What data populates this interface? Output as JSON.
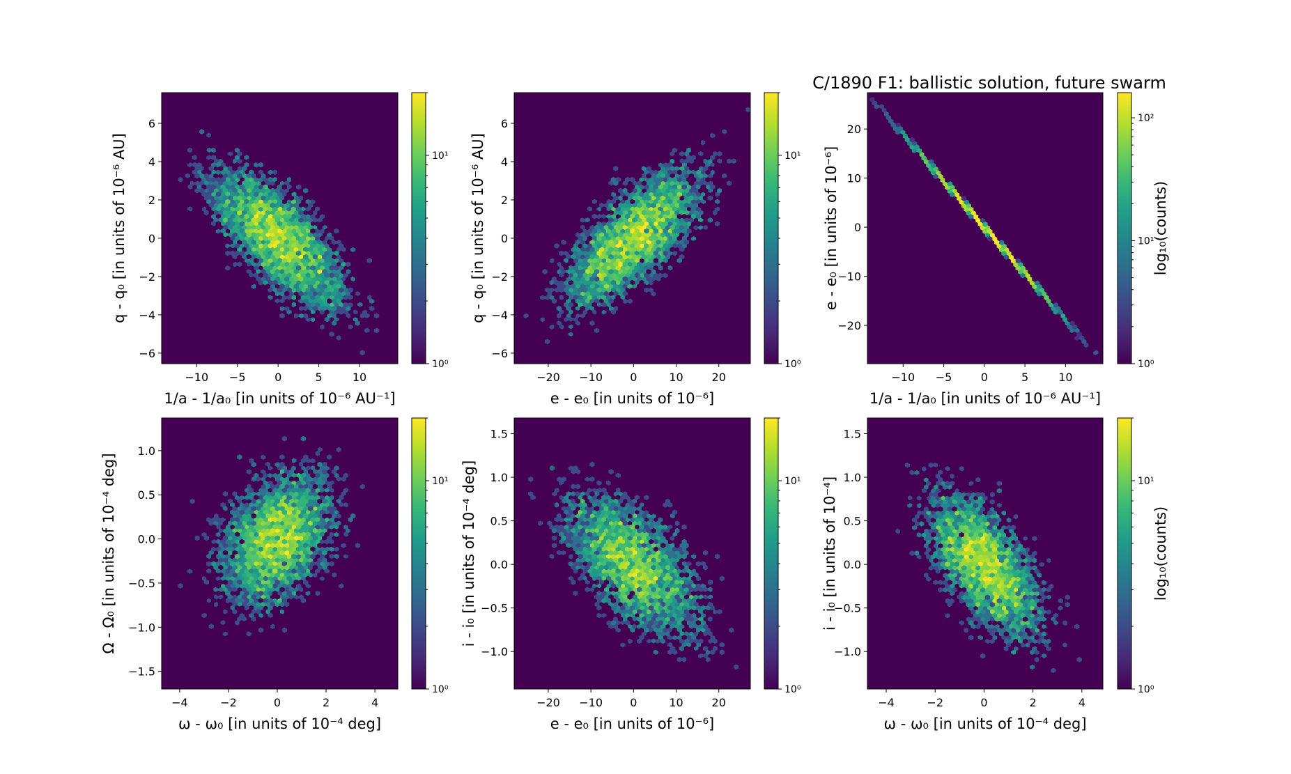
{
  "chart_data": {
    "type": "heatmap",
    "subtype": "hexbin",
    "suptitle": "C/1890 F1:  ballistic solution, future swarm",
    "colormap": "viridis",
    "colormap_stops": [
      "#440154",
      "#482878",
      "#3e4989",
      "#31688e",
      "#26828e",
      "#1f9e89",
      "#35b779",
      "#6ece58",
      "#b5de2b",
      "#fde725"
    ],
    "background_color": "#440154",
    "n_samples": 5000,
    "panels": [
      {
        "id": "top-left",
        "xlabel": "1/a - 1/a₀ [in units of 10⁻⁶ AU⁻¹]",
        "ylabel": "q - q₀ [in units of 10⁻⁶ AU]",
        "xlim": [
          -14.3,
          14.7
        ],
        "ylim": [
          -6.55,
          7.6
        ],
        "xticks": [
          -10,
          -5,
          0,
          5,
          10
        ],
        "xtick_labels": [
          "−10",
          "−5",
          "0",
          "5",
          "10"
        ],
        "yticks": [
          -6,
          -4,
          -2,
          0,
          2,
          4,
          6
        ],
        "ytick_labels": [
          "−6",
          "−4",
          "−2",
          "0",
          "2",
          "4",
          "6"
        ],
        "distribution": {
          "x_sigma": 4.6,
          "y_sigma": 2.0,
          "correlation": -0.72
        },
        "colorbar": {
          "min_count": 1,
          "max_count": 20,
          "ticks": [
            1,
            10
          ],
          "tick_labels": [
            "10⁰",
            "10¹"
          ],
          "label": ""
        }
      },
      {
        "id": "top-middle",
        "xlabel": "e - e₀ [in units of 10⁻⁶]",
        "ylabel": "q - q₀ [in units of 10⁻⁶ AU]",
        "xlim": [
          -28,
          27.4
        ],
        "ylim": [
          -6.55,
          7.6
        ],
        "xticks": [
          -20,
          -10,
          0,
          10,
          20
        ],
        "xtick_labels": [
          "−20",
          "−10",
          "0",
          "10",
          "20"
        ],
        "yticks": [
          -6,
          -4,
          -2,
          0,
          2,
          4,
          6
        ],
        "ytick_labels": [
          "−6",
          "−4",
          "−2",
          "0",
          "2",
          "4",
          "6"
        ],
        "distribution": {
          "x_sigma": 8.7,
          "y_sigma": 2.0,
          "correlation": 0.72
        },
        "colorbar": {
          "min_count": 1,
          "max_count": 20,
          "ticks": [
            1,
            10
          ],
          "tick_labels": [
            "10⁰",
            "10¹"
          ],
          "label": ""
        }
      },
      {
        "id": "top-right",
        "xlabel": "1/a - 1/a₀ [in units of 10⁻⁶ AU⁻¹]",
        "ylabel": "e - e₀ [in units of 10⁻⁶]",
        "xlim": [
          -14.4,
          14.6
        ],
        "ylim": [
          -27.8,
          27.4
        ],
        "xticks": [
          -10,
          -5,
          0,
          5,
          10
        ],
        "xtick_labels": [
          "−10",
          "−5",
          "0",
          "5",
          "10"
        ],
        "yticks": [
          -20,
          -10,
          0,
          10,
          20
        ],
        "ytick_labels": [
          "−20",
          "−10",
          "0",
          "10",
          "20"
        ],
        "distribution": {
          "x_sigma": 4.6,
          "y_sigma": 8.7,
          "correlation": -0.9999
        },
        "colorbar": {
          "min_count": 1,
          "max_count": 160,
          "ticks": [
            1,
            10,
            100
          ],
          "tick_labels": [
            "10⁰",
            "10¹",
            "10²"
          ],
          "label": "log₁₀(counts)"
        }
      },
      {
        "id": "bottom-left",
        "xlabel": "ω - ω₀ [in units of 10⁻⁴ deg]",
        "ylabel": "Ω - Ω₀ [in units of 10⁻⁴ deg]",
        "xlim": [
          -4.74,
          4.94
        ],
        "ylim": [
          -1.7,
          1.37
        ],
        "xticks": [
          -4,
          -2,
          0,
          2,
          4
        ],
        "xtick_labels": [
          "−4",
          "−2",
          "0",
          "2",
          "4"
        ],
        "yticks": [
          -1.5,
          -1.0,
          -0.5,
          0.0,
          0.5,
          1.0
        ],
        "ytick_labels": [
          "−1.5",
          "−1.0",
          "−0.5",
          "0.0",
          "0.5",
          "1.0"
        ],
        "distribution": {
          "x_sigma": 1.25,
          "y_sigma": 0.42,
          "correlation": 0.35
        },
        "colorbar": {
          "min_count": 1,
          "max_count": 20,
          "ticks": [
            1,
            10
          ],
          "tick_labels": [
            "10⁰",
            "10¹"
          ],
          "label": ""
        }
      },
      {
        "id": "bottom-middle",
        "xlabel": "e - e₀ [in units of 10⁻⁶]",
        "ylabel": "i - i₀ [in units of 10⁻⁴ deg]",
        "xlim": [
          -28,
          27.4
        ],
        "ylim": [
          -1.43,
          1.68
        ],
        "xticks": [
          -20,
          -10,
          0,
          10,
          20
        ],
        "xtick_labels": [
          "−20",
          "−10",
          "0",
          "10",
          "20"
        ],
        "yticks": [
          -1.0,
          -0.5,
          0.0,
          0.5,
          1.0,
          1.5
        ],
        "ytick_labels": [
          "−1.0",
          "−0.5",
          "0.0",
          "0.5",
          "1.0",
          "1.5"
        ],
        "distribution": {
          "x_sigma": 8.7,
          "y_sigma": 0.45,
          "correlation": -0.6
        },
        "colorbar": {
          "min_count": 1,
          "max_count": 20,
          "ticks": [
            1,
            10
          ],
          "tick_labels": [
            "10⁰",
            "10¹"
          ],
          "label": ""
        }
      },
      {
        "id": "bottom-right",
        "xlabel": "ω - ω₀ [in units of 10⁻⁴ deg]",
        "ylabel": "i - i₀ [in units of 10⁻⁴]",
        "xlim": [
          -4.77,
          4.86
        ],
        "ylim": [
          -1.43,
          1.68
        ],
        "xticks": [
          -4,
          -2,
          0,
          2,
          4
        ],
        "xtick_labels": [
          "−4",
          "−2",
          "0",
          "2",
          "4"
        ],
        "yticks": [
          -1.0,
          -0.5,
          0.0,
          0.5,
          1.0,
          1.5
        ],
        "ytick_labels": [
          "−1.0",
          "−0.5",
          "0.0",
          "0.5",
          "1.0",
          "1.5"
        ],
        "distribution": {
          "x_sigma": 1.25,
          "y_sigma": 0.45,
          "correlation": -0.62
        },
        "colorbar": {
          "min_count": 1,
          "max_count": 20,
          "ticks": [
            1,
            10
          ],
          "tick_labels": [
            "10⁰",
            "10¹"
          ],
          "label": "log₁₀(counts)"
        }
      }
    ]
  }
}
